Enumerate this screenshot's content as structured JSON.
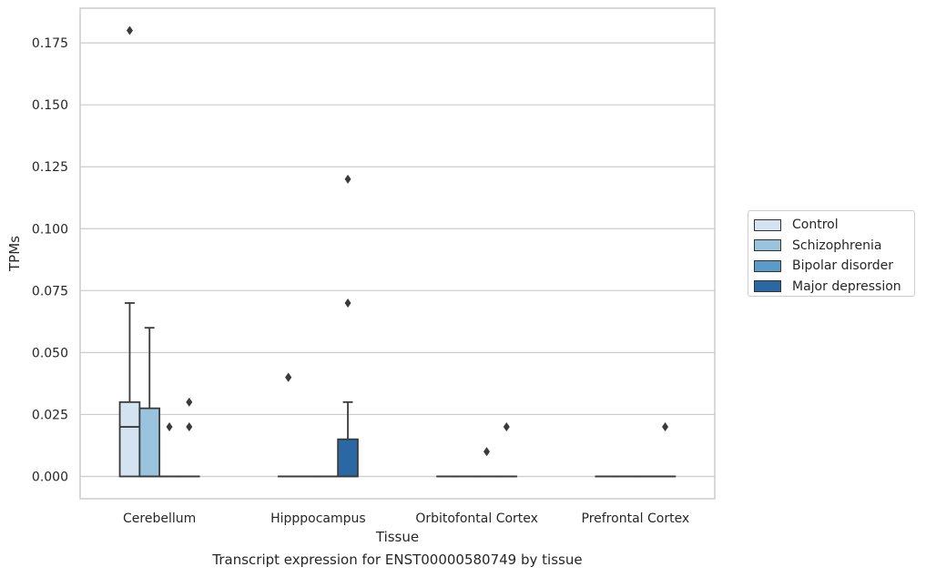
{
  "chart_data": {
    "type": "box",
    "title": "",
    "caption": "Transcript expression for ENST00000580749 by tissue",
    "xlabel": "Tissue",
    "ylabel": "TPMs",
    "ylim": [
      -0.009,
      0.189
    ],
    "yticks": [
      "0.000",
      "0.025",
      "0.050",
      "0.075",
      "0.100",
      "0.125",
      "0.150",
      "0.175"
    ],
    "ytick_values": [
      0,
      0.025,
      0.05,
      0.075,
      0.1,
      0.125,
      0.15,
      0.175
    ],
    "grid": "horizontal",
    "legend_position": "right",
    "categories": [
      "Cerebellum",
      "Hipppocampus",
      "Orbitofontal Cortex",
      "Prefrontal Cortex"
    ],
    "series": [
      {
        "name": "Control",
        "color": "#d3e3f1",
        "boxes": [
          {
            "q1": 0,
            "median": 0.02,
            "q3": 0.03,
            "whisker_low": 0,
            "whisker_high": 0.07,
            "outliers": [
              0.18
            ]
          },
          {
            "q1": 0,
            "median": 0,
            "q3": 0,
            "whisker_low": 0,
            "whisker_high": 0,
            "outliers": [
              0.04,
              0.04
            ]
          },
          {
            "q1": 0,
            "median": 0,
            "q3": 0,
            "whisker_low": 0,
            "whisker_high": 0,
            "outliers": []
          },
          {
            "q1": 0,
            "median": 0,
            "q3": 0,
            "whisker_low": 0,
            "whisker_high": 0,
            "outliers": []
          }
        ]
      },
      {
        "name": "Schizophrenia",
        "color": "#9ac3de",
        "boxes": [
          {
            "q1": 0,
            "median": 0,
            "q3": 0.0275,
            "whisker_low": 0,
            "whisker_high": 0.06,
            "outliers": []
          },
          {
            "q1": 0,
            "median": 0,
            "q3": 0,
            "whisker_low": 0,
            "whisker_high": 0,
            "outliers": []
          },
          {
            "q1": 0,
            "median": 0,
            "q3": 0,
            "whisker_low": 0,
            "whisker_high": 0,
            "outliers": []
          },
          {
            "q1": 0,
            "median": 0,
            "q3": 0,
            "whisker_low": 0,
            "whisker_high": 0,
            "outliers": []
          }
        ]
      },
      {
        "name": "Bipolar disorder",
        "color": "#5b9bc9",
        "boxes": [
          {
            "q1": 0,
            "median": 0,
            "q3": 0,
            "whisker_low": 0,
            "whisker_high": 0,
            "outliers": [
              0.02
            ]
          },
          {
            "q1": 0,
            "median": 0,
            "q3": 0,
            "whisker_low": 0,
            "whisker_high": 0,
            "outliers": []
          },
          {
            "q1": 0,
            "median": 0,
            "q3": 0,
            "whisker_low": 0,
            "whisker_high": 0,
            "outliers": [
              0.01
            ]
          },
          {
            "q1": 0,
            "median": 0,
            "q3": 0,
            "whisker_low": 0,
            "whisker_high": 0,
            "outliers": []
          }
        ]
      },
      {
        "name": "Major depression",
        "color": "#2a68a4",
        "boxes": [
          {
            "q1": 0,
            "median": 0,
            "q3": 0,
            "whisker_low": 0,
            "whisker_high": 0,
            "outliers": [
              0.02,
              0.03
            ]
          },
          {
            "q1": 0,
            "median": 0,
            "q3": 0.015,
            "whisker_low": 0,
            "whisker_high": 0.03,
            "outliers": [
              0.07,
              0.12
            ]
          },
          {
            "q1": 0,
            "median": 0,
            "q3": 0,
            "whisker_low": 0,
            "whisker_high": 0,
            "outliers": [
              0.02
            ]
          },
          {
            "q1": 0,
            "median": 0,
            "q3": 0,
            "whisker_low": 0,
            "whisker_high": 0,
            "outliers": [
              0.02
            ]
          }
        ]
      }
    ]
  }
}
